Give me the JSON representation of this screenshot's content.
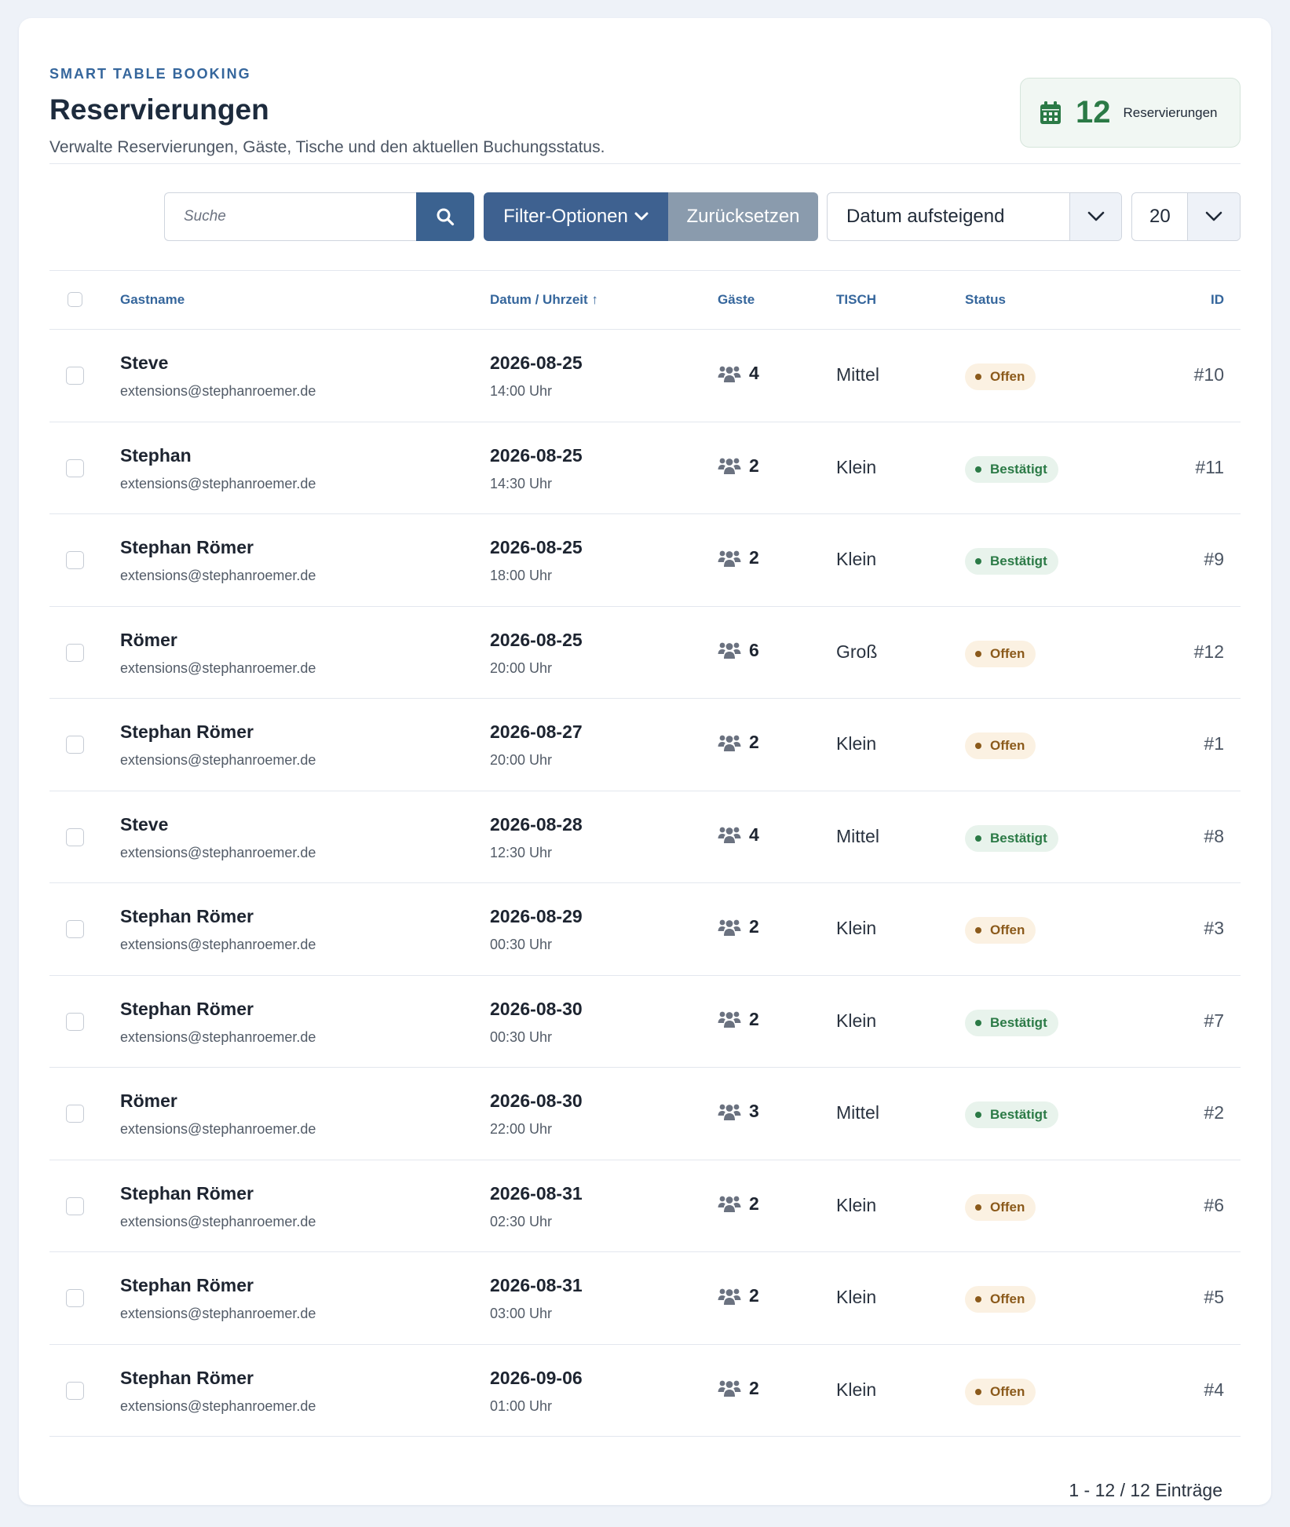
{
  "header": {
    "eyebrow": "SMART TABLE BOOKING",
    "title": "Reservierungen",
    "subtitle": "Verwalte Reservierungen, Gäste, Tische und den aktuellen Buchungsstatus.",
    "count": "12",
    "count_label": "Reservierungen",
    "count_icon": "calendar-icon"
  },
  "toolbar": {
    "search_placeholder": "Suche",
    "search_value": "",
    "filter_label": "Filter-Optionen",
    "reset_label": "Zurücksetzen",
    "sort_selected": "Datum aufsteigend",
    "perpage_selected": "20"
  },
  "table": {
    "columns": {
      "name": "Gastname",
      "date": "Datum / Uhrzeit ↑",
      "guests": "Gäste",
      "tisch": "TISCH",
      "status": "Status",
      "id": "ID"
    },
    "rows": [
      {
        "name": "Steve",
        "email": "extensions@stephanroemer.de",
        "date": "2026-08-25",
        "time": "14:00 Uhr",
        "guests": "4",
        "tisch": "Mittel",
        "status": "Offen",
        "status_type": "offen",
        "id": "#10"
      },
      {
        "name": "Stephan",
        "email": "extensions@stephanroemer.de",
        "date": "2026-08-25",
        "time": "14:30 Uhr",
        "guests": "2",
        "tisch": "Klein",
        "status": "Bestätigt",
        "status_type": "bestaetigt",
        "id": "#11"
      },
      {
        "name": "Stephan Römer",
        "email": "extensions@stephanroemer.de",
        "date": "2026-08-25",
        "time": "18:00 Uhr",
        "guests": "2",
        "tisch": "Klein",
        "status": "Bestätigt",
        "status_type": "bestaetigt",
        "id": "#9"
      },
      {
        "name": "Römer",
        "email": "extensions@stephanroemer.de",
        "date": "2026-08-25",
        "time": "20:00 Uhr",
        "guests": "6",
        "tisch": "Groß",
        "status": "Offen",
        "status_type": "offen",
        "id": "#12"
      },
      {
        "name": "Stephan Römer",
        "email": "extensions@stephanroemer.de",
        "date": "2026-08-27",
        "time": "20:00 Uhr",
        "guests": "2",
        "tisch": "Klein",
        "status": "Offen",
        "status_type": "offen",
        "id": "#1"
      },
      {
        "name": "Steve",
        "email": "extensions@stephanroemer.de",
        "date": "2026-08-28",
        "time": "12:30 Uhr",
        "guests": "4",
        "tisch": "Mittel",
        "status": "Bestätigt",
        "status_type": "bestaetigt",
        "id": "#8"
      },
      {
        "name": "Stephan Römer",
        "email": "extensions@stephanroemer.de",
        "date": "2026-08-29",
        "time": "00:30 Uhr",
        "guests": "2",
        "tisch": "Klein",
        "status": "Offen",
        "status_type": "offen",
        "id": "#3"
      },
      {
        "name": "Stephan Römer",
        "email": "extensions@stephanroemer.de",
        "date": "2026-08-30",
        "time": "00:30 Uhr",
        "guests": "2",
        "tisch": "Klein",
        "status": "Bestätigt",
        "status_type": "bestaetigt",
        "id": "#7"
      },
      {
        "name": "Römer",
        "email": "extensions@stephanroemer.de",
        "date": "2026-08-30",
        "time": "22:00 Uhr",
        "guests": "3",
        "tisch": "Mittel",
        "status": "Bestätigt",
        "status_type": "bestaetigt",
        "id": "#2"
      },
      {
        "name": "Stephan Römer",
        "email": "extensions@stephanroemer.de",
        "date": "2026-08-31",
        "time": "02:30 Uhr",
        "guests": "2",
        "tisch": "Klein",
        "status": "Offen",
        "status_type": "offen",
        "id": "#6"
      },
      {
        "name": "Stephan Römer",
        "email": "extensions@stephanroemer.de",
        "date": "2026-08-31",
        "time": "03:00 Uhr",
        "guests": "2",
        "tisch": "Klein",
        "status": "Offen",
        "status_type": "offen",
        "id": "#5"
      },
      {
        "name": "Stephan Römer",
        "email": "extensions@stephanroemer.de",
        "date": "2026-09-06",
        "time": "01:00 Uhr",
        "guests": "2",
        "tisch": "Klein",
        "status": "Offen",
        "status_type": "offen",
        "id": "#4"
      }
    ]
  },
  "footer": {
    "pagination": "1 - 12 / 12 Einträge"
  },
  "colors": {
    "accent": "#3e6190",
    "success": "#2b7a46",
    "warning": "#8b5a1b"
  }
}
